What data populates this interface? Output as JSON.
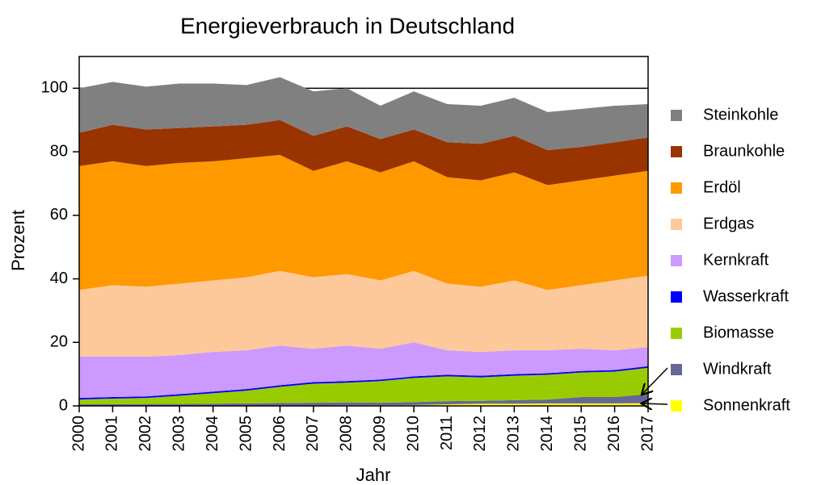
{
  "chart_data": {
    "type": "stacked_area",
    "title": "Energieverbrauch in Deutschland",
    "x_label": "Jahr",
    "y_label": "Prozent",
    "categories": [
      "2000",
      "2001",
      "2002",
      "2003",
      "2004",
      "2005",
      "2006",
      "2007",
      "2008",
      "2009",
      "2010",
      "2011",
      "2012",
      "2013",
      "2014",
      "2015",
      "2016",
      "2017"
    ],
    "ylim": [
      0,
      110
    ],
    "yticks": [
      0,
      20,
      40,
      60,
      80,
      100
    ],
    "hline": 100,
    "series": [
      {
        "name": "Sonnenkraft",
        "color": "#ffff00",
        "values": [
          0,
          0,
          0,
          0,
          0,
          0.1,
          0.1,
          0.1,
          0.2,
          0.2,
          0.3,
          0.5,
          0.7,
          0.7,
          0.8,
          0.8,
          0.8,
          0.9
        ]
      },
      {
        "name": "Windkraft",
        "color": "#666699",
        "values": [
          0.5,
          0.5,
          0.6,
          0.6,
          0.7,
          0.7,
          0.8,
          0.9,
          0.9,
          0.8,
          0.9,
          1,
          0.9,
          1.1,
          1.2,
          2,
          2,
          2.8
        ]
      },
      {
        "name": "Biomasse",
        "color": "#99cc00",
        "values": [
          1.5,
          1.8,
          1.9,
          2.6,
          3.3,
          4,
          5.1,
          6,
          6.2,
          6.8,
          7.6,
          7.8,
          7.4,
          7.7,
          7.8,
          7.7,
          8,
          8.3
        ]
      },
      {
        "name": "Wasserkraft",
        "color": "#0000ff",
        "values": [
          0.5,
          0.5,
          0.5,
          0.5,
          0.5,
          0.5,
          0.5,
          0.5,
          0.5,
          0.5,
          0.5,
          0.5,
          0.5,
          0.5,
          0.5,
          0.5,
          0.5,
          0.5
        ]
      },
      {
        "name": "Kernkraft",
        "color": "#cc99ff",
        "values": [
          13,
          12.7,
          12.5,
          12.3,
          12.5,
          12.2,
          12.5,
          10.5,
          11.2,
          9.7,
          10.7,
          7.7,
          7.5,
          7.5,
          7.2,
          7,
          6.2,
          6
        ]
      },
      {
        "name": "Erdgas",
        "color": "#fdc99b",
        "values": [
          21,
          22.5,
          22,
          22.5,
          22.5,
          23,
          23.5,
          22.5,
          22.5,
          21.5,
          22.5,
          21,
          20.5,
          22,
          19,
          20,
          22,
          22.5
        ]
      },
      {
        "name": "Erdöl",
        "color": "#ff9900",
        "values": [
          39,
          39,
          38,
          38,
          37.5,
          37.5,
          36.5,
          33.5,
          35.5,
          34,
          34.5,
          33.5,
          33.5,
          34,
          33,
          33,
          33,
          33
        ]
      },
      {
        "name": "Braunkohle",
        "color": "#993300",
        "values": [
          10.5,
          11.5,
          11.5,
          11,
          11,
          10.5,
          11,
          11,
          11,
          10.5,
          10,
          11,
          11.5,
          11.5,
          11,
          10.5,
          10.5,
          10.5
        ]
      },
      {
        "name": "Steinkohle",
        "color": "#808080",
        "values": [
          14,
          13.5,
          13.5,
          14,
          13.5,
          12.5,
          13.5,
          14,
          12,
          10.5,
          12,
          12,
          12,
          12,
          12,
          12,
          11.5,
          10.5
        ]
      }
    ]
  }
}
